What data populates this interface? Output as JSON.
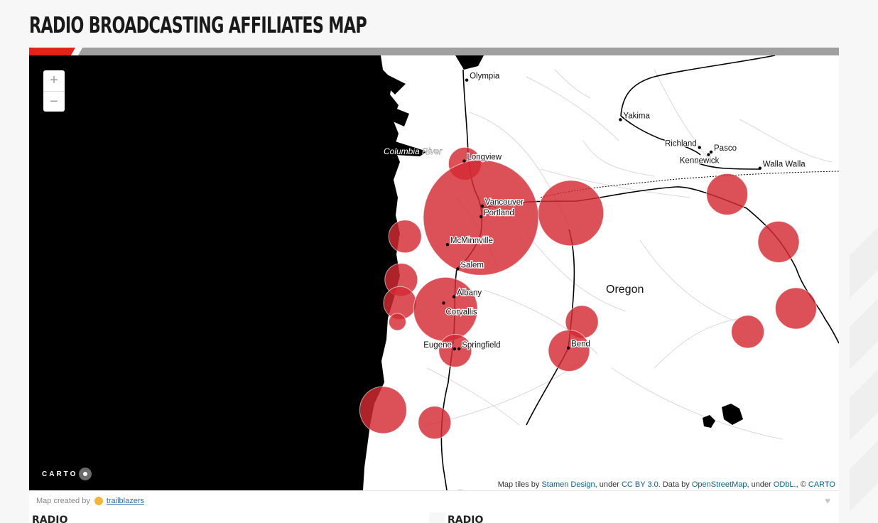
{
  "page": {
    "title": "Radio Broadcasting Affiliates Map"
  },
  "colors": {
    "ocean": "#000000",
    "land": "#ffffff",
    "road": "#000000",
    "minor_road": "#d9d9d9",
    "circle": "#d42a33",
    "accent_red": "#e2231a",
    "accent_gray": "#a0a0a0"
  },
  "map": {
    "region_label": "Oregon",
    "river_label": "Columbia River",
    "zoom": {
      "in_label": "+",
      "out_label": "−"
    },
    "cities": [
      {
        "name": "Olympia",
        "lon": -122.9,
        "lat": 47.04
      },
      {
        "name": "Yakima",
        "lon": -120.51,
        "lat": 46.6
      },
      {
        "name": "Richland",
        "lon": -119.28,
        "lat": 46.29
      },
      {
        "name": "Pasco",
        "lon": -119.1,
        "lat": 46.24
      },
      {
        "name": "Kennewick",
        "lon": -119.14,
        "lat": 46.21
      },
      {
        "name": "Walla Walla",
        "lon": -118.34,
        "lat": 46.06
      },
      {
        "name": "Longview",
        "lon": -122.94,
        "lat": 46.14
      },
      {
        "name": "Vancouver",
        "lon": -122.66,
        "lat": 45.64
      },
      {
        "name": "Portland",
        "lon": -122.68,
        "lat": 45.52
      },
      {
        "name": "McMinnville",
        "lon": -123.2,
        "lat": 45.21
      },
      {
        "name": "Salem",
        "lon": -123.04,
        "lat": 44.94
      },
      {
        "name": "Albany",
        "lon": -123.1,
        "lat": 44.63
      },
      {
        "name": "Corvallis",
        "lon": -123.26,
        "lat": 44.56
      },
      {
        "name": "Eugene",
        "lon": -123.09,
        "lat": 44.05
      },
      {
        "name": "Springfield",
        "lon": -123.02,
        "lat": 44.05
      },
      {
        "name": "Bend",
        "lon": -121.32,
        "lat": 44.06
      }
    ],
    "affiliates": [
      {
        "lon": -122.93,
        "lat": 46.11,
        "r": 23
      },
      {
        "lon": -122.68,
        "lat": 45.51,
        "r": 81
      },
      {
        "lon": -121.28,
        "lat": 45.56,
        "r": 46
      },
      {
        "lon": -118.85,
        "lat": 45.77,
        "r": 29
      },
      {
        "lon": -118.05,
        "lat": 45.24,
        "r": 29
      },
      {
        "lon": -117.78,
        "lat": 44.5,
        "r": 29
      },
      {
        "lon": -118.53,
        "lat": 44.24,
        "r": 23
      },
      {
        "lon": -123.86,
        "lat": 45.3,
        "r": 23
      },
      {
        "lon": -123.92,
        "lat": 44.82,
        "r": 23
      },
      {
        "lon": -123.94,
        "lat": 44.56,
        "r": 23
      },
      {
        "lon": -123.98,
        "lat": 44.35,
        "r": 12
      },
      {
        "lon": -123.23,
        "lat": 44.49,
        "r": 45
      },
      {
        "lon": -123.08,
        "lat": 44.03,
        "r": 23
      },
      {
        "lon": -121.11,
        "lat": 44.35,
        "r": 23
      },
      {
        "lon": -121.31,
        "lat": 44.03,
        "r": 29
      },
      {
        "lon": -124.2,
        "lat": 43.37,
        "r": 33
      },
      {
        "lon": -123.4,
        "lat": 43.23,
        "r": 23
      },
      {
        "lon": -123.0,
        "lat": 42.3,
        "r": 23
      }
    ],
    "attribution": {
      "p1": "Map tiles by ",
      "l1": "Stamen Design",
      "p2": ", under ",
      "l2": "CC BY 3.0",
      "p3": ". Data by ",
      "l3": "OpenStreetMap",
      "p4": ", under ",
      "l4": "ODbL",
      "p5": "., © ",
      "l5": "CARTO"
    },
    "carto_logo": "CARTO"
  },
  "footer": {
    "created_by": "Map created by",
    "author": "trailblazers"
  },
  "panels": [
    {
      "label": "RADIO"
    },
    {
      "label": "RADIO"
    }
  ]
}
